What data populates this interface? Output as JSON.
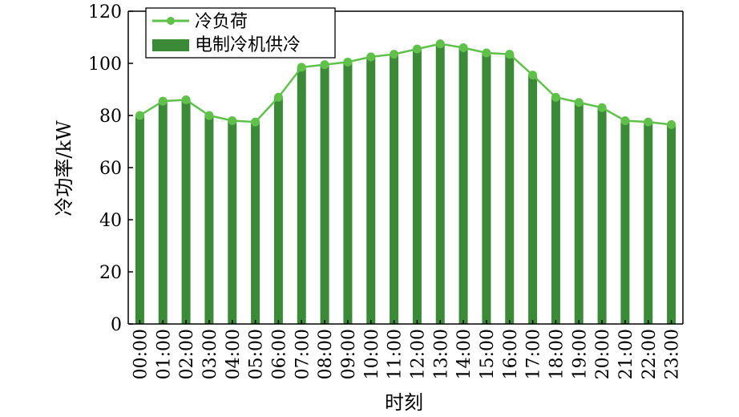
{
  "chart_data": {
    "type": "bar",
    "categories": [
      "00:00",
      "01:00",
      "02:00",
      "03:00",
      "04:00",
      "05:00",
      "06:00",
      "07:00",
      "08:00",
      "09:00",
      "10:00",
      "11:00",
      "12:00",
      "13:00",
      "14:00",
      "15:00",
      "16:00",
      "17:00",
      "18:00",
      "19:00",
      "20:00",
      "21:00",
      "22:00",
      "23:00"
    ],
    "series": [
      {
        "name": "冷负荷",
        "type": "line",
        "color": "#5fc14a",
        "values": [
          80,
          85.5,
          86,
          80,
          78,
          77.5,
          87,
          98.5,
          99.5,
          100.5,
          102.5,
          103.5,
          105.5,
          107.5,
          106,
          104,
          103.5,
          95.5,
          87,
          85,
          83,
          78,
          77.5,
          76.5
        ]
      },
      {
        "name": "电制冷机供冷",
        "type": "bar",
        "color": "#3a8a38",
        "values": [
          80,
          85.5,
          86,
          80,
          78,
          77.5,
          87,
          98.5,
          99.5,
          100.5,
          102.5,
          103.5,
          105.5,
          107.5,
          106,
          104,
          103.5,
          95.5,
          87,
          85,
          83,
          78,
          77.5,
          76.5
        ]
      }
    ],
    "xlabel": "时刻",
    "ylabel": "冷功率/kW",
    "ylim": [
      0,
      120
    ],
    "yticks": [
      0,
      20,
      40,
      60,
      80,
      100,
      120
    ],
    "legend_position": "top-left",
    "grid": false
  }
}
